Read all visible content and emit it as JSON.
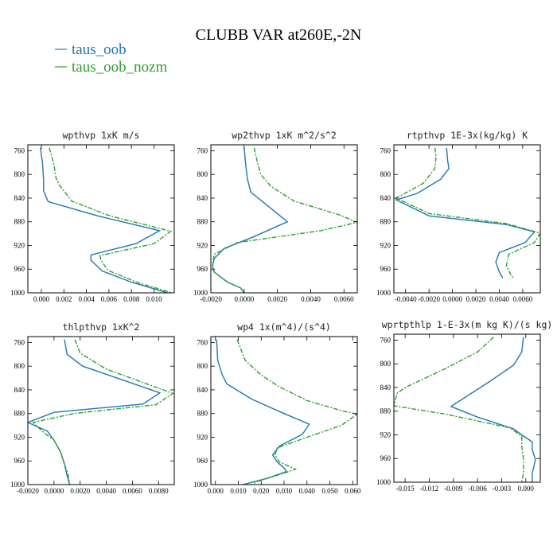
{
  "figure": {
    "title": "CLUBB VAR at260E,-2N"
  },
  "colors": {
    "series_1": "#1f77b4",
    "series_2": "#2ca02c"
  },
  "legend": [
    {
      "label": "taus_oob",
      "color": "#1f77b4",
      "dash": "solid"
    },
    {
      "label": "taus_oob_nozm",
      "color": "#2ca02c",
      "dash": "dashdot"
    }
  ],
  "chart_data": [
    {
      "type": "line",
      "title": "wpthvp  1xK m/s",
      "xlim": [
        -0.0012,
        0.0118
      ],
      "ylim": [
        1000,
        750
      ],
      "x_ticks": [
        0.0,
        0.002,
        0.004,
        0.006,
        0.008,
        0.01
      ],
      "x_tick_labels": [
        "0.000",
        "0.002",
        "0.004",
        "0.006",
        "0.008",
        "0.010"
      ],
      "y_ticks": [
        760,
        800,
        840,
        880,
        920,
        960,
        1000
      ],
      "series": [
        {
          "name": "taus_oob",
          "points": [
            [
              -0.0001,
              755
            ],
            [
              0.0001,
              780
            ],
            [
              0.0002,
              810
            ],
            [
              0.0002,
              828
            ],
            [
              0.0006,
              846
            ],
            [
              0.005,
              870
            ],
            [
              0.0105,
              895
            ],
            [
              0.0084,
              917
            ],
            [
              0.0044,
              936
            ],
            [
              0.0044,
              945
            ],
            [
              0.0054,
              963
            ],
            [
              0.008,
              982
            ],
            [
              0.0112,
              1000
            ]
          ]
        },
        {
          "name": "taus_oob_nozm",
          "points": [
            [
              0.0007,
              755
            ],
            [
              0.0011,
              782
            ],
            [
              0.0013,
              806
            ],
            [
              0.0016,
              818
            ],
            [
              0.0027,
              845
            ],
            [
              0.0061,
              870
            ],
            [
              0.0115,
              896
            ],
            [
              0.01,
              917
            ],
            [
              0.0052,
              937
            ],
            [
              0.0053,
              945
            ],
            [
              0.0059,
              962
            ],
            [
              0.0086,
              983
            ],
            [
              0.0116,
              1000
            ]
          ]
        }
      ]
    },
    {
      "type": "line",
      "title": "wp2thvp  1xK m^2/s^2",
      "xlim": [
        -0.002,
        0.0068
      ],
      "ylim": [
        1000,
        750
      ],
      "x_ticks": [
        -0.002,
        0.0,
        0.002,
        0.004,
        0.006
      ],
      "x_tick_labels": [
        "-0.0020",
        "0.0000",
        "0.0020",
        "0.0040",
        "0.0060"
      ],
      "y_ticks": [
        760,
        800,
        840,
        880,
        920,
        960,
        1000
      ],
      "series": [
        {
          "name": "taus_oob",
          "points": [
            [
              0.0,
              755
            ],
            [
              0.0001,
              785
            ],
            [
              0.0002,
              808
            ],
            [
              0.0004,
              830
            ],
            [
              0.0015,
              855
            ],
            [
              0.0026,
              880
            ],
            [
              0.0006,
              905
            ],
            [
              -0.0012,
              925
            ],
            [
              -0.0018,
              942
            ],
            [
              -0.0019,
              955
            ],
            [
              -0.0018,
              965
            ],
            [
              -0.001,
              982
            ],
            [
              -0.0002,
              992
            ],
            [
              0.0,
              1000
            ]
          ]
        },
        {
          "name": "taus_oob_nozm",
          "points": [
            [
              0.0006,
              755
            ],
            [
              0.0008,
              780
            ],
            [
              0.001,
              800
            ],
            [
              0.0016,
              820
            ],
            [
              0.003,
              845
            ],
            [
              0.0057,
              868
            ],
            [
              0.0068,
              881
            ],
            [
              0.0046,
              895
            ],
            [
              -0.0004,
              915
            ],
            [
              -0.0018,
              935
            ],
            [
              -0.0019,
              955
            ],
            [
              -0.0018,
              965
            ],
            [
              -0.001,
              982
            ],
            [
              -0.0002,
              992
            ],
            [
              0.0,
              1000
            ]
          ]
        }
      ]
    },
    {
      "type": "line",
      "title": "rtpthvp  1E-3x(kg/kg) K",
      "xlim": [
        -0.005,
        0.0075
      ],
      "ylim": [
        1000,
        750
      ],
      "x_ticks": [
        -0.004,
        -0.002,
        0.0,
        0.002,
        0.004,
        0.006
      ],
      "x_tick_labels": [
        "-0.0040",
        "-0.0020",
        "0.0000",
        "0.0020",
        "0.0040",
        "0.0060"
      ],
      "y_ticks": [
        760,
        800,
        840,
        880,
        920,
        960,
        1000
      ],
      "series": [
        {
          "name": "taus_oob",
          "points": [
            [
              -0.0005,
              755
            ],
            [
              -0.0004,
              778
            ],
            [
              -0.0003,
              790
            ],
            [
              -0.001,
              808
            ],
            [
              -0.003,
              832
            ],
            [
              -0.0048,
              843
            ],
            [
              -0.002,
              870
            ],
            [
              0.0047,
              885
            ],
            [
              0.007,
              897
            ],
            [
              0.0062,
              915
            ],
            [
              0.004,
              932
            ],
            [
              0.0037,
              948
            ],
            [
              0.004,
              965
            ],
            [
              0.0043,
              975
            ]
          ]
        },
        {
          "name": "taus_oob_nozm",
          "points": [
            [
              -0.0015,
              755
            ],
            [
              -0.0014,
              770
            ],
            [
              -0.0015,
              790
            ],
            [
              -0.0025,
              815
            ],
            [
              -0.0048,
              840
            ],
            [
              -0.002,
              866
            ],
            [
              0.0046,
              883
            ],
            [
              0.0075,
              899
            ],
            [
              0.007,
              915
            ],
            [
              0.0048,
              935
            ],
            [
              0.0046,
              955
            ],
            [
              0.005,
              970
            ],
            [
              0.0052,
              975
            ]
          ]
        }
      ]
    },
    {
      "type": "line",
      "title": "thlpthvp  1xK^2",
      "xlim": [
        -0.002,
        0.0092
      ],
      "ylim": [
        1000,
        750
      ],
      "x_ticks": [
        -0.002,
        0.0,
        0.002,
        0.004,
        0.006,
        0.008
      ],
      "x_tick_labels": [
        "-0.0020",
        "0.0000",
        "0.0020",
        "0.0040",
        "0.0060",
        "0.0080"
      ],
      "y_ticks": [
        760,
        800,
        840,
        880,
        920,
        960,
        1000
      ],
      "series": [
        {
          "name": "taus_oob",
          "points": [
            [
              0.0008,
              755
            ],
            [
              0.001,
              780
            ],
            [
              0.0022,
              800
            ],
            [
              0.0081,
              845
            ],
            [
              0.0068,
              864
            ],
            [
              0.0,
              878
            ],
            [
              -0.002,
              895
            ],
            [
              -0.0005,
              910
            ],
            [
              0.0,
              925
            ],
            [
              0.0005,
              945
            ],
            [
              0.0008,
              965
            ],
            [
              0.001,
              985
            ],
            [
              0.0012,
              1000
            ]
          ]
        },
        {
          "name": "taus_oob_nozm",
          "points": [
            [
              0.0016,
              755
            ],
            [
              0.002,
              778
            ],
            [
              0.004,
              805
            ],
            [
              0.0091,
              846
            ],
            [
              0.0078,
              865
            ],
            [
              0.0015,
              880
            ],
            [
              -0.0016,
              895
            ],
            [
              -0.0008,
              912
            ],
            [
              0.0,
              925
            ],
            [
              0.0005,
              945
            ],
            [
              0.0008,
              965
            ],
            [
              0.0011,
              985
            ],
            [
              0.0012,
              1000
            ]
          ]
        }
      ]
    },
    {
      "type": "line",
      "title": "wp4  1x(m^4)/(s^4)",
      "xlim": [
        -0.002,
        0.062
      ],
      "ylim": [
        1000,
        750
      ],
      "x_ticks": [
        0.0,
        0.01,
        0.02,
        0.03,
        0.04,
        0.05,
        0.06
      ],
      "x_tick_labels": [
        "0.000",
        "0.010",
        "0.020",
        "0.030",
        "0.040",
        "0.050",
        "0.060"
      ],
      "y_ticks": [
        760,
        800,
        840,
        880,
        920,
        960,
        1000
      ],
      "series": [
        {
          "name": "taus_oob",
          "points": [
            [
              0.0005,
              755
            ],
            [
              0.001,
              790
            ],
            [
              0.003,
              815
            ],
            [
              0.005,
              830
            ],
            [
              0.016,
              856
            ],
            [
              0.03,
              880
            ],
            [
              0.041,
              898
            ],
            [
              0.038,
              915
            ],
            [
              0.028,
              935
            ],
            [
              0.025,
              950
            ],
            [
              0.027,
              962
            ],
            [
              0.03,
              972
            ],
            [
              0.031,
              978
            ],
            [
              0.022,
              990
            ],
            [
              0.012,
              1000
            ]
          ]
        },
        {
          "name": "taus_oob_nozm",
          "points": [
            [
              0.0095,
              755
            ],
            [
              0.013,
              790
            ],
            [
              0.02,
              815
            ],
            [
              0.028,
              835
            ],
            [
              0.04,
              858
            ],
            [
              0.055,
              875
            ],
            [
              0.062,
              881
            ],
            [
              0.055,
              900
            ],
            [
              0.04,
              920
            ],
            [
              0.027,
              938
            ],
            [
              0.026,
              950
            ],
            [
              0.028,
              962
            ],
            [
              0.035,
              974
            ],
            [
              0.029,
              982
            ],
            [
              0.018,
              995
            ],
            [
              0.016,
              1000
            ]
          ]
        }
      ]
    },
    {
      "type": "line",
      "title": "wprtpthlp  1-E-3x(m kg K)/(s kg)",
      "xlim": [
        -0.0164,
        0.0018
      ],
      "ylim": [
        1000,
        750
      ],
      "x_ticks": [
        -0.015,
        -0.012,
        -0.009,
        -0.006,
        -0.003,
        0.0
      ],
      "x_tick_labels": [
        "-0.015",
        "-0.012",
        "-0.009",
        "-0.006",
        "-0.003",
        "0.000"
      ],
      "y_ticks": [
        760,
        800,
        840,
        880,
        920,
        960,
        1000
      ],
      "series": [
        {
          "name": "taus_oob",
          "points": [
            [
              -0.0003,
              755
            ],
            [
              -0.0005,
              780
            ],
            [
              -0.0015,
              802
            ],
            [
              -0.0045,
              830
            ],
            [
              -0.0093,
              872
            ],
            [
              -0.006,
              890
            ],
            [
              -0.0015,
              910
            ],
            [
              -0.0005,
              920
            ],
            [
              0.0008,
              932
            ],
            [
              0.0008,
              945
            ],
            [
              0.0012,
              962
            ],
            [
              0.0008,
              985
            ],
            [
              0.0008,
              1000
            ]
          ]
        },
        {
          "name": "taus_oob_nozm",
          "points": [
            [
              -0.004,
              755
            ],
            [
              -0.006,
              780
            ],
            [
              -0.01,
              808
            ],
            [
              -0.015,
              840
            ],
            [
              -0.016,
              850
            ],
            [
              -0.0164,
              871
            ],
            [
              -0.01,
              885
            ],
            [
              -0.002,
              908
            ],
            [
              -0.0005,
              922
            ],
            [
              -0.0005,
              940
            ],
            [
              -0.0003,
              960
            ],
            [
              -0.0003,
              985
            ],
            [
              -0.0005,
              1000
            ]
          ]
        }
      ]
    }
  ]
}
